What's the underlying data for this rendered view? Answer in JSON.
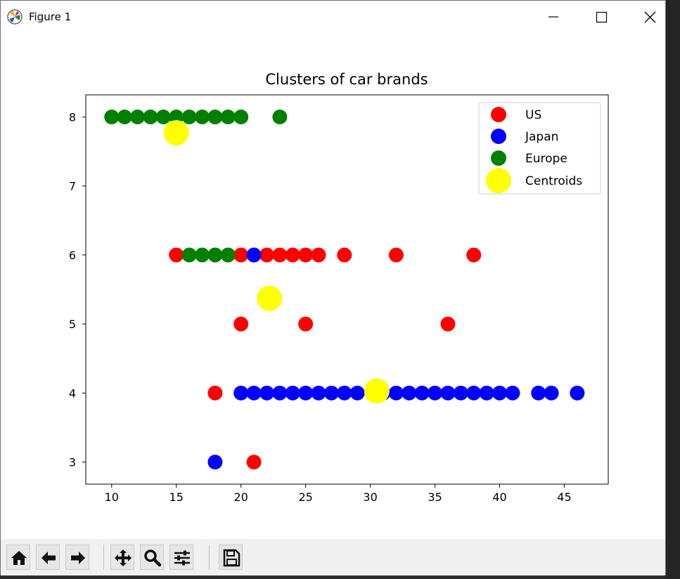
{
  "window": {
    "title": "Figure 1",
    "controls": [
      "minimize-icon",
      "maximize-icon",
      "close-icon"
    ]
  },
  "toolbar": {
    "buttons": [
      {
        "name": "home",
        "icon": "home-icon"
      },
      {
        "name": "back",
        "icon": "arrow-left-icon"
      },
      {
        "name": "forward",
        "icon": "arrow-right-icon"
      },
      {
        "name": "pan",
        "icon": "move-icon"
      },
      {
        "name": "zoom",
        "icon": "magnifier-icon"
      },
      {
        "name": "configure-subplots",
        "icon": "sliders-icon"
      },
      {
        "name": "save",
        "icon": "floppy-disk-icon"
      }
    ]
  },
  "chart_data": {
    "type": "scatter",
    "title": "Clusters of car brands",
    "xlabel": "",
    "ylabel": "",
    "xlim": [
      8,
      48.4
    ],
    "ylim": [
      2.68,
      8.32
    ],
    "xticks": [
      10,
      15,
      20,
      25,
      30,
      35,
      40,
      45
    ],
    "yticks": [
      3,
      4,
      5,
      6,
      7,
      8
    ],
    "grid": false,
    "legend_position": "upper right",
    "series": [
      {
        "name": "US",
        "color": "#ff0000",
        "x": [
          15,
          18,
          19,
          20,
          21,
          22,
          23,
          24,
          25,
          26,
          28,
          32,
          38,
          20,
          25,
          36,
          18,
          21
        ],
        "y": [
          6,
          6,
          6,
          6,
          6,
          6,
          6,
          6,
          6,
          6,
          6,
          6,
          6,
          5,
          5,
          5,
          4,
          3
        ]
      },
      {
        "name": "Japan",
        "color": "#0000ff",
        "x": [
          21,
          20,
          21,
          22,
          23,
          24,
          25,
          26,
          27,
          28,
          29,
          31,
          32,
          33,
          34,
          35,
          36,
          37,
          38,
          39,
          40,
          41,
          43,
          44,
          46,
          18
        ],
        "y": [
          6,
          4,
          4,
          4,
          4,
          4,
          4,
          4,
          4,
          4,
          4,
          4,
          4,
          4,
          4,
          4,
          4,
          4,
          4,
          4,
          4,
          4,
          4,
          4,
          4,
          3
        ]
      },
      {
        "name": "Europe",
        "color": "#008000",
        "x": [
          10,
          11,
          12,
          13,
          14,
          15,
          16,
          17,
          18,
          19,
          20,
          23,
          16,
          17,
          18,
          19
        ],
        "y": [
          8,
          8,
          8,
          8,
          8,
          8,
          8,
          8,
          8,
          8,
          8,
          8,
          6,
          6,
          6,
          6
        ]
      },
      {
        "name": "Centroids",
        "color": "#ffff00",
        "x": [
          15,
          22.2,
          30.5
        ],
        "y": [
          7.77,
          5.37,
          4.03
        ]
      }
    ]
  }
}
